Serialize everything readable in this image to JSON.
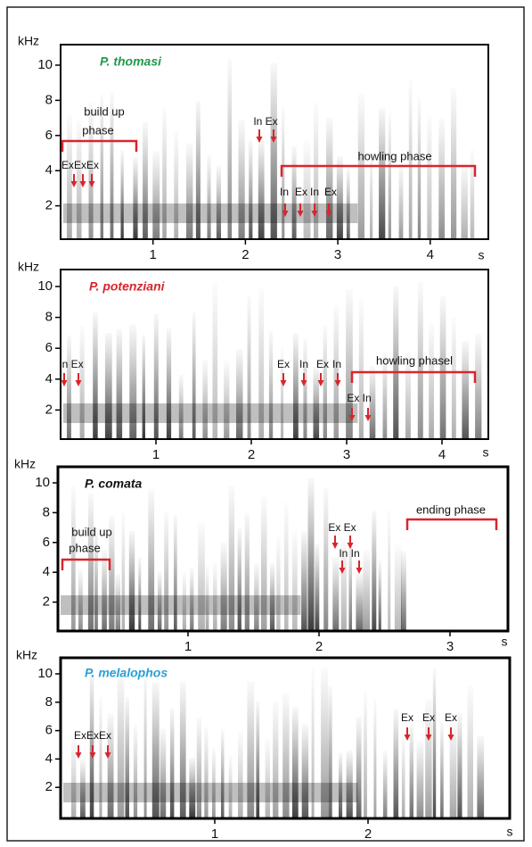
{
  "panels": [
    {
      "title": "P. thomasi",
      "title_color": "#1e9a4a",
      "y_unit": "kHz",
      "x_unit": "s",
      "yticks": [
        2,
        4,
        6,
        8,
        10
      ],
      "xticks": [
        1,
        2,
        3,
        4
      ],
      "annotations": [
        "build up",
        "phase",
        "ExExEx",
        "In Ex",
        "howling phase",
        "In",
        "Ex",
        "In",
        "Ex"
      ]
    },
    {
      "title": "P. potenziani",
      "title_color": "#d8262b",
      "y_unit": "kHz",
      "x_unit": "s",
      "yticks": [
        2,
        4,
        6,
        8,
        10
      ],
      "xticks": [
        1,
        2,
        3,
        4
      ],
      "annotations": [
        "In Ex",
        "Ex",
        "In",
        "Ex",
        "In",
        "howling phasel",
        "Ex In"
      ]
    },
    {
      "title": "P. comata",
      "title_color": "#111111",
      "y_unit": "kHz",
      "x_unit": "s",
      "yticks": [
        2,
        4,
        6,
        8,
        10
      ],
      "xticks": [
        1,
        2,
        3
      ],
      "annotations": [
        "build up",
        "phase",
        "Ex Ex",
        "In In",
        "ending phase"
      ]
    },
    {
      "title": "P. melalophos",
      "title_color": "#2a9fd6",
      "y_unit": "kHz",
      "x_unit": "s",
      "yticks": [
        2,
        4,
        6,
        8,
        10
      ],
      "xticks": [
        1,
        2
      ],
      "annotations": [
        "ExExEx",
        "Ex",
        "Ex",
        "Ex"
      ]
    }
  ]
}
